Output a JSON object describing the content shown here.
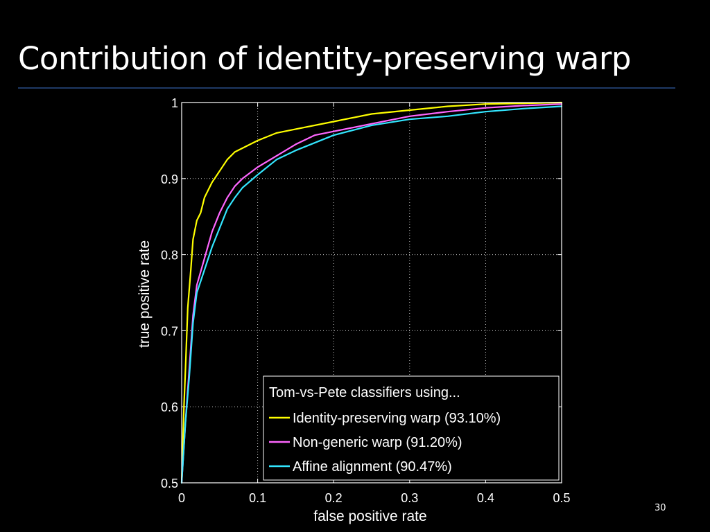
{
  "slide": {
    "title": "Contribution of identity-preserving warp",
    "page_number": "30"
  },
  "colors": {
    "background": "#000000",
    "rule": "#1f3a66",
    "axes": "#ffffff",
    "grid": "#ffffff"
  },
  "chart_data": {
    "type": "line",
    "title": "",
    "xlabel": "false positive rate",
    "ylabel": "true positive rate",
    "xlim": [
      0,
      0.5
    ],
    "ylim": [
      0.5,
      1
    ],
    "xticks": [
      0,
      0.1,
      0.2,
      0.3,
      0.4,
      0.5
    ],
    "xtick_labels": [
      "0",
      "0.1",
      "0.2",
      "0.3",
      "0.4",
      "0.5"
    ],
    "yticks": [
      0.5,
      0.6,
      0.7,
      0.8,
      0.9,
      1
    ],
    "ytick_labels": [
      "0.5",
      "0.6",
      "0.7",
      "0.8",
      "0.9",
      "1"
    ],
    "grid": true,
    "legend": {
      "title": "Tom-vs-Pete classifiers using...",
      "placement": "bottom-right"
    },
    "series": [
      {
        "name": "Identity-preserving warp (93.10%)",
        "color": "#ffff00",
        "points": [
          [
            0.0,
            0.5
          ],
          [
            0.003,
            0.6
          ],
          [
            0.005,
            0.65
          ],
          [
            0.008,
            0.73
          ],
          [
            0.012,
            0.78
          ],
          [
            0.015,
            0.82
          ],
          [
            0.02,
            0.845
          ],
          [
            0.025,
            0.855
          ],
          [
            0.03,
            0.875
          ],
          [
            0.04,
            0.895
          ],
          [
            0.05,
            0.91
          ],
          [
            0.06,
            0.925
          ],
          [
            0.07,
            0.935
          ],
          [
            0.08,
            0.94
          ],
          [
            0.1,
            0.95
          ],
          [
            0.125,
            0.96
          ],
          [
            0.15,
            0.965
          ],
          [
            0.2,
            0.975
          ],
          [
            0.25,
            0.985
          ],
          [
            0.3,
            0.99
          ],
          [
            0.35,
            0.995
          ],
          [
            0.4,
            0.998
          ],
          [
            0.45,
            0.999
          ],
          [
            0.5,
            1.0
          ]
        ]
      },
      {
        "name": "Non-generic warp (91.20%)",
        "color": "#ff66ff",
        "points": [
          [
            0.0,
            0.5
          ],
          [
            0.005,
            0.58
          ],
          [
            0.01,
            0.65
          ],
          [
            0.015,
            0.72
          ],
          [
            0.02,
            0.76
          ],
          [
            0.03,
            0.795
          ],
          [
            0.04,
            0.83
          ],
          [
            0.05,
            0.855
          ],
          [
            0.06,
            0.875
          ],
          [
            0.07,
            0.89
          ],
          [
            0.08,
            0.9
          ],
          [
            0.1,
            0.915
          ],
          [
            0.125,
            0.93
          ],
          [
            0.15,
            0.945
          ],
          [
            0.175,
            0.957
          ],
          [
            0.2,
            0.962
          ],
          [
            0.25,
            0.972
          ],
          [
            0.3,
            0.982
          ],
          [
            0.35,
            0.988
          ],
          [
            0.4,
            0.993
          ],
          [
            0.45,
            0.996
          ],
          [
            0.5,
            0.998
          ]
        ]
      },
      {
        "name": "Affine alignment (90.47%)",
        "color": "#33e6ff",
        "points": [
          [
            0.0,
            0.5
          ],
          [
            0.005,
            0.58
          ],
          [
            0.01,
            0.64
          ],
          [
            0.015,
            0.71
          ],
          [
            0.02,
            0.75
          ],
          [
            0.03,
            0.78
          ],
          [
            0.04,
            0.81
          ],
          [
            0.05,
            0.835
          ],
          [
            0.06,
            0.86
          ],
          [
            0.07,
            0.875
          ],
          [
            0.08,
            0.888
          ],
          [
            0.1,
            0.905
          ],
          [
            0.125,
            0.925
          ],
          [
            0.15,
            0.937
          ],
          [
            0.175,
            0.947
          ],
          [
            0.2,
            0.957
          ],
          [
            0.25,
            0.97
          ],
          [
            0.3,
            0.978
          ],
          [
            0.35,
            0.982
          ],
          [
            0.4,
            0.988
          ],
          [
            0.45,
            0.992
          ],
          [
            0.5,
            0.995
          ]
        ]
      }
    ]
  }
}
